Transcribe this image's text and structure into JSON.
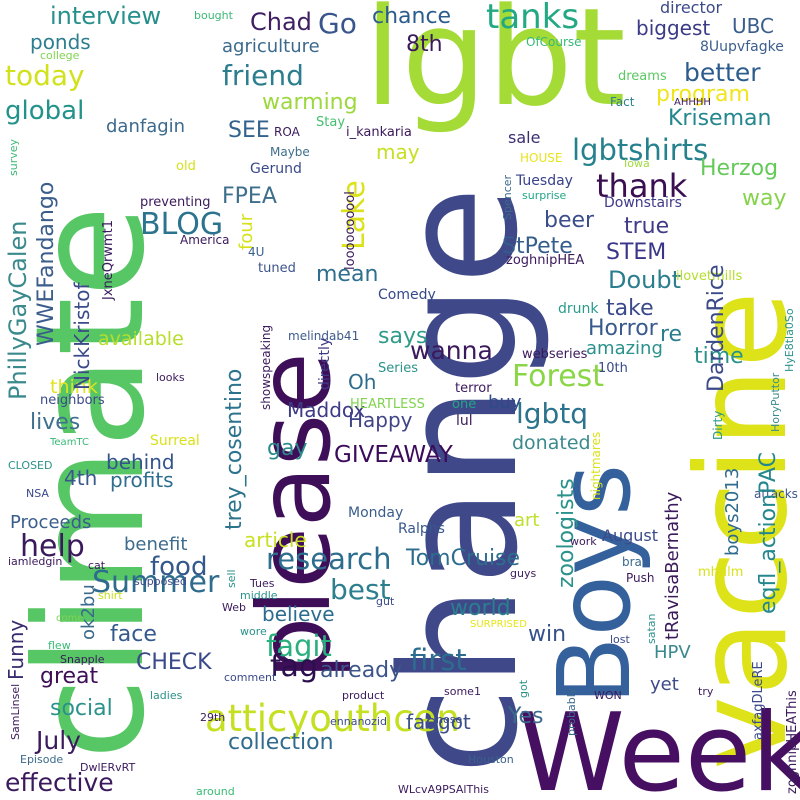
{
  "words": [
    {
      "text": "climate",
      "color": "#57c765"
    },
    {
      "text": "change",
      "color": "#3f4889"
    },
    {
      "text": "lgbt",
      "color": "#a4db36"
    },
    {
      "text": "vaccine",
      "color": "#dde318"
    },
    {
      "text": "please",
      "color": "#3e0f58"
    },
    {
      "text": "Week",
      "color": "#470f62"
    },
    {
      "text": "Boys",
      "color": "#34619b"
    },
    {
      "text": "tanks",
      "color": "#23a884"
    },
    {
      "text": "lgbtshirts",
      "color": "#26818e"
    },
    {
      "text": "atticyouthcen",
      "color": "#c5df21"
    },
    {
      "text": "thank",
      "color": "#3a0f52"
    },
    {
      "text": "Forest",
      "color": "#8bd646"
    },
    {
      "text": "BLOG",
      "color": "#2c738e"
    },
    {
      "text": "Summer",
      "color": "#2e6c8e"
    },
    {
      "text": "research",
      "color": "#2d6e8e"
    },
    {
      "text": "friend",
      "color": "#2c7e8e"
    },
    {
      "text": "fagit",
      "color": "#2ab07e"
    },
    {
      "text": "help",
      "color": "#3b1a5c"
    },
    {
      "text": "Go",
      "color": "#38568c"
    },
    {
      "text": "Chad",
      "color": "#3f1e63"
    },
    {
      "text": "interview",
      "color": "#27908c"
    },
    {
      "text": "chance",
      "color": "#2b5d8c"
    },
    {
      "text": "better",
      "color": "#2c5c8c"
    },
    {
      "text": "today",
      "color": "#d1e11c"
    },
    {
      "text": "global",
      "color": "#21938b"
    },
    {
      "text": "warming",
      "color": "#9cd83e"
    },
    {
      "text": "program",
      "color": "#f0e51b"
    },
    {
      "text": "Kriseman",
      "color": "#24878e"
    },
    {
      "text": "Herzog",
      "color": "#64c958"
    },
    {
      "text": "way",
      "color": "#85d34b"
    },
    {
      "text": "SEE",
      "color": "#33638d"
    },
    {
      "text": "FPEA",
      "color": "#3d6f8c"
    },
    {
      "text": "Lake",
      "color": "#dbe21a"
    },
    {
      "text": "beer",
      "color": "#3b4e8b"
    },
    {
      "text": "true",
      "color": "#3f3b87"
    },
    {
      "text": "StPete",
      "color": "#345c8c"
    },
    {
      "text": "STEM",
      "color": "#39368a"
    },
    {
      "text": "Doubt",
      "color": "#2a7e8e"
    },
    {
      "text": "take",
      "color": "#3a4a8a"
    },
    {
      "text": "Horror",
      "color": "#385a8c"
    },
    {
      "text": "says",
      "color": "#2f9b89"
    },
    {
      "text": "wanna",
      "color": "#3a1a5c"
    },
    {
      "text": "mean",
      "color": "#2e6e8e"
    },
    {
      "text": "available",
      "color": "#b6de2a"
    },
    {
      "text": "lives",
      "color": "#3e6f8d"
    },
    {
      "text": "think",
      "color": "#e0e21e"
    },
    {
      "text": "gay",
      "color": "#2c8a8d"
    },
    {
      "text": "Maddox",
      "color": "#3d3a86"
    },
    {
      "text": "Happy",
      "color": "#414487"
    },
    {
      "text": "GIVEAWAY",
      "color": "#3c0b5b"
    },
    {
      "text": "lgbtq",
      "color": "#2c738e"
    },
    {
      "text": "donated",
      "color": "#3c8a8d"
    },
    {
      "text": "behind",
      "color": "#34548c"
    },
    {
      "text": "profits",
      "color": "#2f6e8e"
    },
    {
      "text": "4th",
      "color": "#38588c"
    },
    {
      "text": "food",
      "color": "#33598c"
    },
    {
      "text": "benefit",
      "color": "#3c6b8c"
    },
    {
      "text": "Proceeds",
      "color": "#3a5d8c"
    },
    {
      "text": "article",
      "color": "#c8e020"
    },
    {
      "text": "best",
      "color": "#2e7f8e"
    },
    {
      "text": "believe",
      "color": "#2c6c8e"
    },
    {
      "text": "TomCruise",
      "color": "#2d6d8e"
    },
    {
      "text": "world",
      "color": "#2c7e8e"
    },
    {
      "text": "win",
      "color": "#36508b"
    },
    {
      "text": "face",
      "color": "#34598c"
    },
    {
      "text": "CHECK",
      "color": "#3a4989"
    },
    {
      "text": "fag",
      "color": "#2b0f4f"
    },
    {
      "text": "already",
      "color": "#3b558b"
    },
    {
      "text": "first",
      "color": "#2d6c8e"
    },
    {
      "text": "great",
      "color": "#3e0e57"
    },
    {
      "text": "social",
      "color": "#2a928b"
    },
    {
      "text": "July",
      "color": "#3b1a5c"
    },
    {
      "text": "collection",
      "color": "#316b8e"
    },
    {
      "text": "effective",
      "color": "#3a1a5c"
    },
    {
      "text": "faggot",
      "color": "#3c4f8a"
    },
    {
      "text": "Yes",
      "color": "#3c6a8c"
    },
    {
      "text": "yet",
      "color": "#3f4a8a"
    },
    {
      "text": "HPV",
      "color": "#3a8a8d"
    },
    {
      "text": "time",
      "color": "#2a928b"
    },
    {
      "text": "re",
      "color": "#2c7e8e"
    },
    {
      "text": "amazing",
      "color": "#2a918b"
    },
    {
      "text": "buy",
      "color": "#2f4a8a"
    },
    {
      "text": "art",
      "color": "#bde02a"
    },
    {
      "text": "sale",
      "color": "#3b2f6f"
    },
    {
      "text": "may",
      "color": "#c8e022"
    },
    {
      "text": "8th",
      "color": "#3b1a5c"
    },
    {
      "text": "agriculture",
      "color": "#3b6a8c"
    },
    {
      "text": "ponds",
      "color": "#2d7e8e"
    },
    {
      "text": "biggest",
      "color": "#3b3a86"
    },
    {
      "text": "UBC",
      "color": "#3a5d8c"
    },
    {
      "text": "director",
      "color": "#3b4a89"
    },
    {
      "text": "8Uupvfagke",
      "color": "#3d5f8c"
    },
    {
      "text": "danfagin",
      "color": "#3b6a8c"
    },
    {
      "text": "Gerund",
      "color": "#3a4989"
    },
    {
      "text": "Tuesday",
      "color": "#39428a"
    },
    {
      "text": "Downstairs",
      "color": "#3e3a87"
    },
    {
      "text": "Comedy",
      "color": "#34498a"
    },
    {
      "text": "drunk",
      "color": "#2a9b8a"
    },
    {
      "text": "Oh",
      "color": "#2e6c8e"
    },
    {
      "text": "boys2013",
      "color": "#2f6b8e"
    },
    {
      "text": "zoologists",
      "color": "#2a928b"
    },
    {
      "text": "August",
      "color": "#3b4a89"
    },
    {
      "text": "Funny",
      "color": "#3a2a6e"
    },
    {
      "text": "ok2bu",
      "color": "#3b6a8c"
    },
    {
      "text": "Surreal",
      "color": "#d9e218"
    },
    {
      "text": "Monday",
      "color": "#3a5d8c"
    },
    {
      "text": "Ralphs",
      "color": "#38588c"
    },
    {
      "text": "HEARTLESS",
      "color": "#7fd34e"
    },
    {
      "text": "lul",
      "color": "#3b1a5c"
    },
    {
      "text": "one",
      "color": "#24a585"
    },
    {
      "text": "terror",
      "color": "#3b1a5c"
    },
    {
      "text": "10th",
      "color": "#3b4a89"
    },
    {
      "text": "Series",
      "color": "#2a928b"
    },
    {
      "text": "webseries",
      "color": "#3b1a5c"
    },
    {
      "text": "melindab41",
      "color": "#3e5a8c"
    },
    {
      "text": "showspeaking",
      "color": "#3b1a5c"
    },
    {
      "text": "directly",
      "color": "#3b3a86"
    },
    {
      "text": "tuned",
      "color": "#3b558b"
    },
    {
      "text": "4U",
      "color": "#3b5f8c"
    },
    {
      "text": "America",
      "color": "#3b1a5c"
    },
    {
      "text": "preventing",
      "color": "#3b1a5c"
    },
    {
      "text": "Maybe",
      "color": "#3d6f8c"
    },
    {
      "text": "ROA",
      "color": "#3b1a5c"
    },
    {
      "text": "Stay",
      "color": "#44bf70"
    },
    {
      "text": "i_kankaria",
      "color": "#3b1a5c"
    },
    {
      "text": "HOUSE",
      "color": "#e7e419"
    },
    {
      "text": "old",
      "color": "#d5e21a"
    },
    {
      "text": "survey",
      "color": "#3aba76"
    },
    {
      "text": "college",
      "color": "#7fd34e"
    },
    {
      "text": "bought",
      "color": "#3aba76"
    },
    {
      "text": "OfCourse",
      "color": "#38b977"
    },
    {
      "text": "dreams",
      "color": "#5bc863"
    },
    {
      "text": "Fact",
      "color": "#2d7e8e"
    },
    {
      "text": "AHHHH",
      "color": "#3b1a5c"
    },
    {
      "text": "Iowa",
      "color": "#9fda3a"
    },
    {
      "text": "Spencer",
      "color": "#3b6a8c"
    },
    {
      "text": "surprise",
      "color": "#21a585"
    },
    {
      "text": "JxneQrwmt1",
      "color": "#3b1a5c"
    },
    {
      "text": "ilovetmills",
      "color": "#b5de2b"
    },
    {
      "text": "HyE8tla0So",
      "color": "#2a928b"
    },
    {
      "text": "HoryPuttor",
      "color": "#3a8a8d"
    },
    {
      "text": "Dirty",
      "color": "#2e9b88"
    },
    {
      "text": "attacks",
      "color": "#3b558b"
    },
    {
      "text": "nightmares",
      "color": "#d9e218"
    },
    {
      "text": "zoghnipHEA",
      "color": "#3b1a5c"
    },
    {
      "text": "zoghnipHEAThis",
      "color": "#3b1a5c"
    },
    {
      "text": "axfagDLeRE",
      "color": "#3b4a89"
    },
    {
      "text": "mhfilm",
      "color": "#d9e218"
    },
    {
      "text": "bra",
      "color": "#3b6a8c"
    },
    {
      "text": "Push",
      "color": "#3b1a5c"
    },
    {
      "text": "work",
      "color": "#3b1a5c"
    },
    {
      "text": "guys",
      "color": "#3b1a5c"
    },
    {
      "text": "satan",
      "color": "#2a928b"
    },
    {
      "text": "lost",
      "color": "#3b4a89"
    },
    {
      "text": "try",
      "color": "#3b1a5c"
    },
    {
      "text": "WON",
      "color": "#3b1a5c"
    },
    {
      "text": "probably",
      "color": "#3b6a8c"
    },
    {
      "text": "Houston",
      "color": "#3b5f8c"
    },
    {
      "text": "some1",
      "color": "#3b1a5c"
    },
    {
      "text": "nose",
      "color": "#3b4a89"
    },
    {
      "text": "got",
      "color": "#2a928b"
    },
    {
      "text": "product",
      "color": "#3b1a5c"
    },
    {
      "text": "ennanozid",
      "color": "#3b4a89"
    },
    {
      "text": "WLcvA9PSAlThis",
      "color": "#3b1a5c"
    },
    {
      "text": "around",
      "color": "#3aba76"
    },
    {
      "text": "DwlERvRT",
      "color": "#3b1a5c"
    },
    {
      "text": "Episode",
      "color": "#3b6a8c"
    },
    {
      "text": "SamLinsel",
      "color": "#3b1a5c"
    },
    {
      "text": "29th",
      "color": "#3b1a5c"
    },
    {
      "text": "ladies",
      "color": "#2a928b"
    },
    {
      "text": "comment",
      "color": "#3b4a89"
    },
    {
      "text": "Snapple",
      "color": "#3b1a5c"
    },
    {
      "text": "flew",
      "color": "#3aba76"
    },
    {
      "text": "wore",
      "color": "#2a928b"
    },
    {
      "text": "Web",
      "color": "#3b1a5c"
    },
    {
      "text": "Tues",
      "color": "#3b1a5c"
    },
    {
      "text": "middle",
      "color": "#2a928b"
    },
    {
      "text": "gut",
      "color": "#3b4a89"
    },
    {
      "text": "supposed",
      "color": "#3b4a89"
    },
    {
      "text": "sell",
      "color": "#2a928b"
    },
    {
      "text": "come",
      "color": "#7fd34e"
    },
    {
      "text": "cat",
      "color": "#3b1a5c"
    },
    {
      "text": "iamledgin",
      "color": "#3b1a5c"
    },
    {
      "text": "shirt",
      "color": "#c8e020"
    },
    {
      "text": "NSA",
      "color": "#3b4a89"
    },
    {
      "text": "CLOSED",
      "color": "#2a928b"
    },
    {
      "text": "TeamTC",
      "color": "#3aba76"
    },
    {
      "text": "neighbors",
      "color": "#3b4a89"
    },
    {
      "text": "looks",
      "color": "#3b1a5c"
    },
    {
      "text": "SURPRISED",
      "color": "#e7e419"
    },
    {
      "text": "eqfl_actionPAC",
      "color": "#24878e"
    },
    {
      "text": "DardenRice",
      "color": "#3b4a89"
    },
    {
      "text": "tRavisaBernathy",
      "color": "#3b1a5c"
    },
    {
      "text": "trey_cosentino",
      "color": "#2c738e"
    },
    {
      "text": "NickKristof",
      "color": "#3b4a89"
    },
    {
      "text": "WWEFandango",
      "color": "#3a5d8c"
    },
    {
      "text": "PhillyGayCalen",
      "color": "#3a8a8d"
    },
    {
      "text": "loooooooool",
      "color": "#3b1a5c"
    },
    {
      "text": "four",
      "color": "#d5e21a"
    }
  ]
}
